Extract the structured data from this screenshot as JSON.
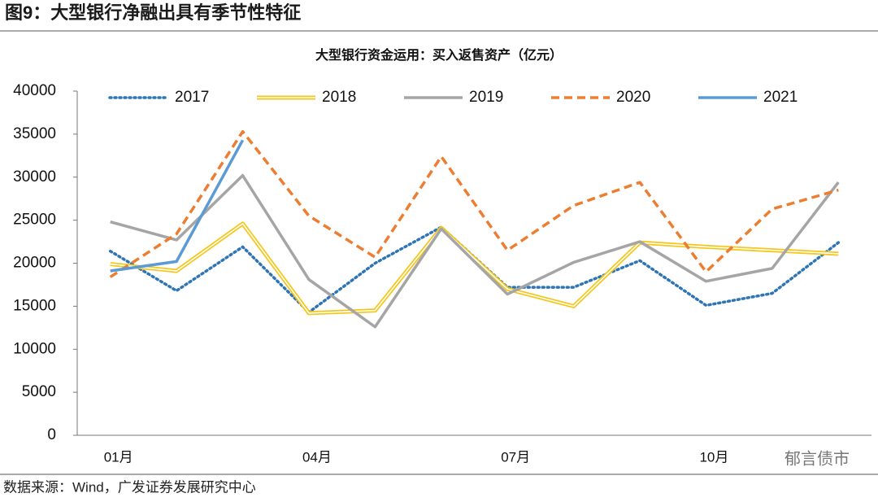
{
  "header": {
    "title": "图9：大型银行净融出具有季节性特征"
  },
  "chart_data": {
    "type": "line",
    "title": "大型银行资金运用：买入返售资产（亿元）",
    "categories": [
      "01月",
      null,
      null,
      "04月",
      null,
      null,
      "07月",
      null,
      null,
      "10月",
      null,
      null
    ],
    "ylim": [
      0,
      40000
    ],
    "yticks": [
      0,
      5000,
      10000,
      15000,
      20000,
      25000,
      30000,
      35000,
      40000
    ],
    "legend": "top",
    "series": [
      {
        "name": "2017",
        "color": "#2e75b6",
        "style": "dotted",
        "values": [
          21400,
          16800,
          21900,
          14300,
          20000,
          24200,
          17200,
          17200,
          20300,
          15100,
          16500,
          22400
        ]
      },
      {
        "name": "2018",
        "color": "#f5c518",
        "style": "double",
        "values": [
          19900,
          19100,
          24600,
          14200,
          14500,
          24100,
          17000,
          15000,
          22400,
          21900,
          21500,
          21100
        ]
      },
      {
        "name": "2019",
        "color": "#a5a5a5",
        "style": "solid",
        "values": [
          24800,
          22700,
          30200,
          18100,
          12600,
          24000,
          16400,
          20100,
          22500,
          17900,
          19400,
          29400
        ]
      },
      {
        "name": "2020",
        "color": "#ed7d31",
        "style": "dashed",
        "values": [
          18400,
          23400,
          35300,
          25500,
          20700,
          32400,
          21500,
          26700,
          29400,
          19000,
          26300,
          28500
        ]
      },
      {
        "name": "2021",
        "color": "#5b9bd5",
        "style": "solid",
        "values": [
          19100,
          20200,
          34300,
          null,
          null,
          null,
          null,
          null,
          null,
          null,
          null,
          null
        ]
      }
    ]
  },
  "watermark": "郁言债市",
  "footer": {
    "source": "数据来源：Wind，广发证券发展研究中心"
  }
}
